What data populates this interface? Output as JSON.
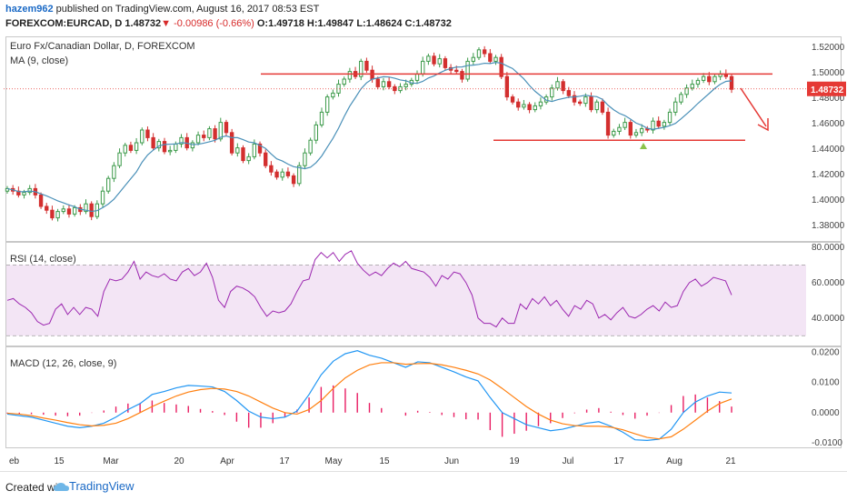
{
  "header": {
    "author": "hazem962",
    "published": "published on TradingView.com, August 16, 2017 08:53 EST",
    "symbol": "FOREXCOM:EURCAD, D",
    "last": "1.48732",
    "change": "-0.00986 (-0.66%)",
    "ohlc": "O:1.49718 H:1.49847 L:1.48624 C:1.48732"
  },
  "price_pane": {
    "title": "Euro Fx/Canadian Dollar, D, FOREXCOM",
    "ma_label": "MA (9, close)",
    "last_price_tag": "1.48732",
    "colors": {
      "up": "#3c9a4a",
      "down": "#d32f2f",
      "ma": "#4a90b8",
      "level": "#e53935",
      "arrow": "#e53935"
    }
  },
  "rsi_pane": {
    "label": "RSI (14, close)",
    "color": "#9c27b0",
    "band": "#f3e5f5"
  },
  "macd_pane": {
    "label": "MACD (12, 26, close, 9)",
    "macd_color": "#2196f3",
    "signal_color": "#ff7f0e",
    "hist_color": "#e91e63"
  },
  "x_axis": [
    "eb",
    "15",
    "Mar",
    "20",
    "Apr",
    "17",
    "May",
    "15",
    "Jun",
    "19",
    "Jul",
    "17",
    "Aug",
    "21"
  ],
  "footer": {
    "created": "Created with",
    "brand": "TradingView"
  },
  "chart_data": [
    {
      "type": "candlestick",
      "title": "Euro Fx/Canadian Dollar, D, FOREXCOM",
      "y_ticks": [
        "1.52000",
        "1.50000",
        "1.48000",
        "1.46000",
        "1.44000",
        "1.42000",
        "1.40000",
        "1.38000"
      ],
      "ylim": [
        1.37,
        1.525
      ],
      "close": [
        1.409,
        1.407,
        1.404,
        1.406,
        1.409,
        1.404,
        1.395,
        1.392,
        1.386,
        1.391,
        1.393,
        1.389,
        1.394,
        1.391,
        1.397,
        1.387,
        1.397,
        1.407,
        1.417,
        1.427,
        1.437,
        1.443,
        1.439,
        1.445,
        1.455,
        1.449,
        1.441,
        1.446,
        1.438,
        1.439,
        1.444,
        1.449,
        1.441,
        1.445,
        1.451,
        1.449,
        1.456,
        1.448,
        1.461,
        1.453,
        1.437,
        1.441,
        1.431,
        1.434,
        1.444,
        1.437,
        1.427,
        1.422,
        1.418,
        1.422,
        1.419,
        1.413,
        1.427,
        1.437,
        1.447,
        1.459,
        1.469,
        1.481,
        1.484,
        1.491,
        1.495,
        1.501,
        1.497,
        1.509,
        1.502,
        1.495,
        1.489,
        1.493,
        1.489,
        1.486,
        1.489,
        1.491,
        1.494,
        1.499,
        1.509,
        1.513,
        1.507,
        1.511,
        1.504,
        1.502,
        1.501,
        1.495,
        1.509,
        1.512,
        1.518,
        1.515,
        1.509,
        1.512,
        1.497,
        1.481,
        1.477,
        1.473,
        1.475,
        1.471,
        1.474,
        1.477,
        1.481,
        1.488,
        1.493,
        1.486,
        1.482,
        1.477,
        1.476,
        1.481,
        1.471,
        1.477,
        1.469,
        1.451,
        1.454,
        1.457,
        1.461,
        1.451,
        1.453,
        1.456,
        1.455,
        1.462,
        1.458,
        1.461,
        1.469,
        1.477,
        1.483,
        1.488,
        1.491,
        1.494,
        1.497,
        1.493,
        1.497,
        1.499,
        1.497,
        1.487
      ],
      "ma9_label": "MA (9, close)",
      "annotations": {
        "resistance": 1.499,
        "support": 1.447,
        "last_price": 1.48732
      }
    },
    {
      "type": "line",
      "title": "RSI (14, close)",
      "y_ticks": [
        "80.0000",
        "60.0000",
        "40.0000"
      ],
      "ylim": [
        25,
        82
      ],
      "band": [
        30,
        70
      ],
      "values": [
        50,
        51,
        48,
        46,
        43,
        38,
        36,
        37,
        45,
        48,
        42,
        46,
        42,
        46,
        45,
        41,
        55,
        62,
        61,
        62,
        66,
        72,
        62,
        66,
        64,
        63,
        65,
        62,
        61,
        66,
        68,
        64,
        66,
        71,
        63,
        50,
        46,
        55,
        58,
        57,
        55,
        52,
        46,
        41,
        44,
        43,
        44,
        48,
        55,
        61,
        62,
        73,
        77,
        74,
        77,
        72,
        76,
        78,
        71,
        67,
        64,
        66,
        64,
        68,
        71,
        69,
        72,
        68,
        67,
        66,
        63,
        58,
        64,
        62,
        66,
        65,
        60,
        53,
        40,
        37,
        37,
        35,
        40,
        37,
        37,
        48,
        45,
        51,
        48,
        52,
        47,
        50,
        45,
        41,
        47,
        45,
        50,
        48,
        40,
        42,
        39,
        43,
        46,
        41,
        40,
        42,
        45,
        47,
        44,
        49,
        46,
        47,
        55,
        60,
        62,
        58,
        60,
        63,
        62,
        61,
        53
      ]
    },
    {
      "type": "line",
      "title": "MACD (12, 26, close, 9)",
      "y_ticks": [
        "0.0200",
        "0.0100",
        "0.0000",
        "-0.0100"
      ],
      "ylim": [
        -0.0115,
        0.021
      ],
      "series": [
        {
          "name": "MACD",
          "values": [
            -0.0005,
            -0.001,
            -0.0015,
            -0.0025,
            -0.0035,
            -0.0045,
            -0.005,
            -0.0045,
            -0.0035,
            -0.0015,
            0.001,
            0.003,
            0.006,
            0.007,
            0.0082,
            0.009,
            0.0088,
            0.0085,
            0.007,
            0.004,
            0.0005,
            -0.0015,
            -0.002,
            -0.0015,
            0.0005,
            0.006,
            0.0125,
            0.017,
            0.0195,
            0.0205,
            0.019,
            0.018,
            0.0165,
            0.015,
            0.0168,
            0.0165,
            0.015,
            0.0135,
            0.0118,
            0.0105,
            0.005,
            0.0,
            -0.002,
            -0.004,
            -0.005,
            -0.006,
            -0.0055,
            -0.0045,
            -0.0035,
            -0.003,
            -0.0045,
            -0.0065,
            -0.009,
            -0.0092,
            -0.0088,
            -0.0055,
            0.0,
            0.0035,
            0.0055,
            0.0068,
            0.0065
          ]
        },
        {
          "name": "Signal",
          "values": [
            -0.0002,
            -0.0005,
            -0.001,
            -0.0018,
            -0.0025,
            -0.0033,
            -0.004,
            -0.0044,
            -0.0042,
            -0.0035,
            -0.002,
            0.0,
            0.002,
            0.0038,
            0.0055,
            0.0068,
            0.0076,
            0.008,
            0.0078,
            0.007,
            0.0055,
            0.0035,
            0.0015,
            0.0,
            -0.0005,
            0.001,
            0.004,
            0.008,
            0.0115,
            0.014,
            0.0158,
            0.0165,
            0.0165,
            0.016,
            0.0162,
            0.0163,
            0.0158,
            0.015,
            0.014,
            0.0128,
            0.0108,
            0.008,
            0.005,
            0.002,
            -0.0005,
            -0.0025,
            -0.0037,
            -0.0043,
            -0.0045,
            -0.0045,
            -0.0048,
            -0.0057,
            -0.007,
            -0.0082,
            -0.0087,
            -0.008,
            -0.0055,
            -0.0025,
            0.0005,
            0.003,
            0.0045
          ]
        }
      ]
    }
  ]
}
